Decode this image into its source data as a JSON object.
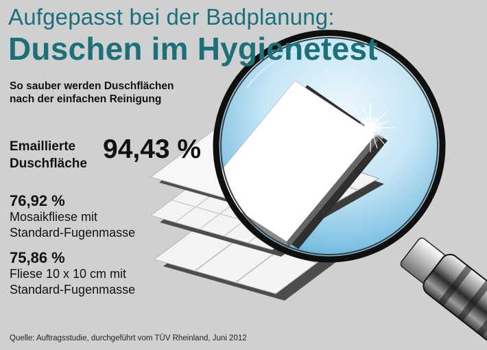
{
  "header": {
    "title_line1": "Aufgepasst bei der Badplanung:",
    "title_line2": "Duschen im Hygienetest"
  },
  "subtitle": {
    "line1": "So sauber werden Duschflächen",
    "line2": "nach der einfachen Reinigung"
  },
  "results": [
    {
      "label_line1": "Emaillierte",
      "label_line2": "Duschfläche",
      "value": "94,43 %"
    },
    {
      "value": "76,92 %",
      "label_line1": "Mosaikfliese mit",
      "label_line2": "Standard-Fugenmasse"
    },
    {
      "value": "75,86 %",
      "label_line1": "Fliese 10 x 10 cm mit",
      "label_line2": "Standard-Fugenmasse"
    }
  ],
  "source": "Quelle: Auftragsstudie, durchgeführt vom TÜV Rheinland, Juni 2012",
  "colors": {
    "background": "#cfd0d2",
    "title": "#1d6f78",
    "lens_center": "#e4f3fb",
    "lens_edge": "#4aa3cf",
    "rim": "#111111"
  }
}
